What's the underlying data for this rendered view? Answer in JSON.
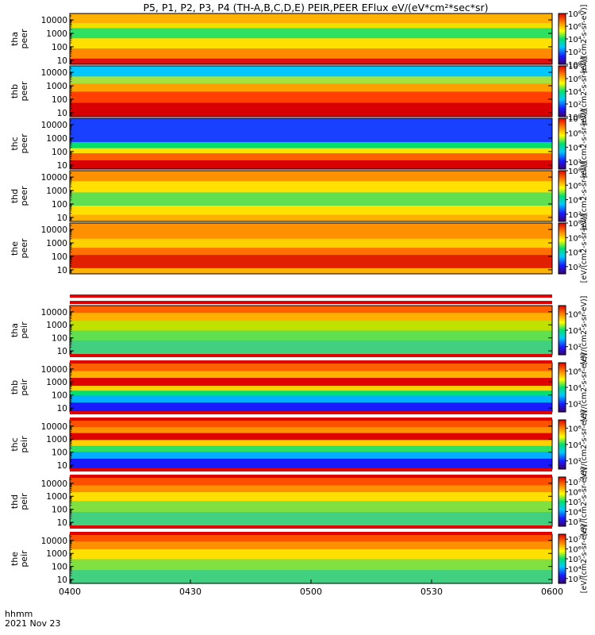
{
  "chart_data": {
    "type": "heatmap",
    "title": "P5, P1, P2, P3, P4 (TH-A,B,C,D,E) PEIR,PEER EFlux eV/(eV*cm²*sec*sr)",
    "x_axis": {
      "label": "hhmm",
      "sublabel": "2021 Nov 23",
      "ticks": [
        "0400",
        "0430",
        "0500",
        "0530",
        "0600"
      ],
      "range": [
        "04:00",
        "06:00"
      ]
    },
    "y_ticks": [
      "10000",
      "1000",
      "100",
      "10"
    ],
    "y_range": [
      5,
      30000
    ],
    "y_scale": "log",
    "colorbar_label": "[eV/(cm2-s-sr-eV)]",
    "colormap": [
      "#3a0070",
      "#1a1aff",
      "#00c8ff",
      "#00e070",
      "#ffff00",
      "#ff8000",
      "#e00000"
    ],
    "panels": [
      {
        "id": "tha-peer",
        "ylabel": [
          "tha",
          "peer"
        ],
        "cbar_ticks": [
          "10⁸",
          "10⁶",
          "10⁴",
          "10²",
          "10⁰"
        ],
        "cbar_exp_range": [
          0,
          8
        ]
      },
      {
        "id": "thb-peer",
        "ylabel": [
          "thb",
          "peer"
        ],
        "cbar_ticks": [
          "10⁸",
          "10⁶",
          "10⁴",
          "10²",
          "10⁰"
        ],
        "cbar_exp_range": [
          0,
          8
        ]
      },
      {
        "id": "thc-peer",
        "ylabel": [
          "thc",
          "peer"
        ],
        "cbar_ticks": [
          "10⁸",
          "10⁶",
          "10⁴",
          "10²"
        ],
        "cbar_exp_range": [
          1,
          8
        ]
      },
      {
        "id": "thd-peer",
        "ylabel": [
          "thd",
          "peer"
        ],
        "cbar_ticks": [
          "10⁸",
          "10⁶",
          "10⁴",
          "10²"
        ],
        "cbar_exp_range": [
          1,
          8
        ]
      },
      {
        "id": "the-peer",
        "ylabel": [
          "the",
          "peer"
        ],
        "cbar_ticks": [
          "10⁸",
          "10⁶",
          "10⁴",
          "10²"
        ],
        "cbar_exp_range": [
          1,
          8
        ]
      },
      {
        "id": "tha-peir",
        "ylabel": [
          "tha",
          "peir"
        ],
        "cbar_ticks": [
          "10⁶",
          "10⁴",
          "10²"
        ],
        "cbar_exp_range": [
          1,
          7
        ]
      },
      {
        "id": "thb-peir",
        "ylabel": [
          "thb",
          "peir"
        ],
        "cbar_ticks": [
          "10⁶",
          "10⁴",
          "10²"
        ],
        "cbar_exp_range": [
          1,
          7
        ]
      },
      {
        "id": "thc-peir",
        "ylabel": [
          "thc",
          "peir"
        ],
        "cbar_ticks": [
          "10⁶",
          "10⁴",
          "10²"
        ],
        "cbar_exp_range": [
          1,
          7
        ]
      },
      {
        "id": "thd-peir",
        "ylabel": [
          "thd",
          "peir"
        ],
        "cbar_ticks": [
          "10⁷",
          "10⁶",
          "10⁵",
          "10⁴",
          "10³"
        ],
        "cbar_exp_range": [
          2.5,
          7.5
        ]
      },
      {
        "id": "the-peir",
        "ylabel": [
          "the",
          "peir"
        ],
        "cbar_ticks": [
          "10⁷",
          "10⁶",
          "10⁵",
          "10⁴",
          "10³"
        ],
        "cbar_exp_range": [
          2.5,
          7.5
        ]
      }
    ]
  }
}
